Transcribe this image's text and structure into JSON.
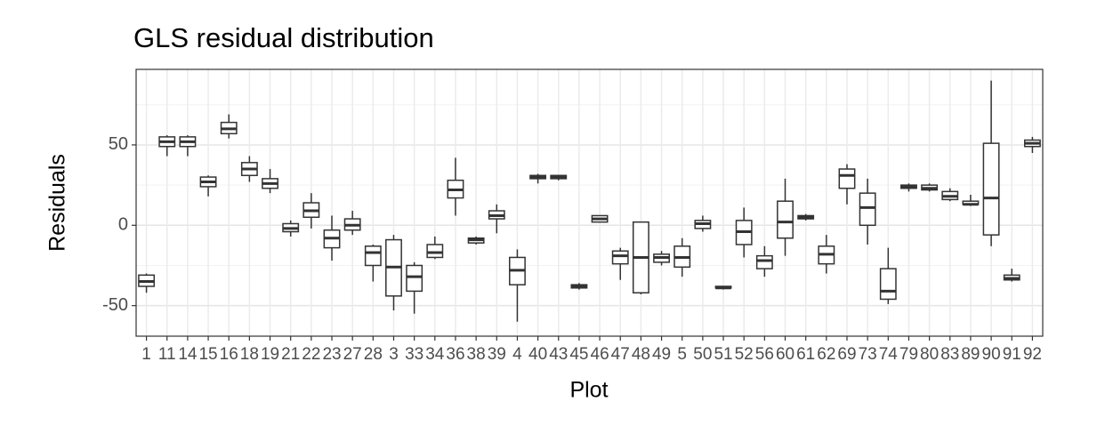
{
  "chart_data": {
    "type": "boxplot",
    "title": "GLS residual distribution",
    "x_label": "Plot",
    "y_label": "Residuals",
    "categories": [
      "1",
      "11",
      "14",
      "15",
      "16",
      "18",
      "19",
      "21",
      "22",
      "23",
      "27",
      "28",
      "3",
      "33",
      "34",
      "36",
      "38",
      "39",
      "4",
      "40",
      "43",
      "45",
      "46",
      "47",
      "48",
      "49",
      "5",
      "50",
      "51",
      "52",
      "56",
      "60",
      "61",
      "62",
      "69",
      "73",
      "74",
      "79",
      "80",
      "83",
      "89",
      "90",
      "91",
      "92"
    ],
    "min": [
      -42,
      43,
      43,
      18,
      54,
      27,
      20,
      -7,
      -2,
      -22,
      -6,
      -35,
      -53,
      -55,
      -21,
      6,
      -12,
      -5,
      -60,
      26,
      28,
      -40,
      2,
      -34,
      -43,
      -25,
      -32,
      -4,
      -40,
      -20,
      -32,
      -19,
      3,
      -30,
      13,
      -12,
      -49,
      21,
      21,
      15,
      12,
      -13,
      -35,
      45
    ],
    "q1": [
      -38,
      49,
      49,
      24,
      57,
      31,
      23,
      -4,
      5,
      -14,
      -3,
      -25,
      -44,
      -41,
      -20,
      17,
      -11,
      4,
      -37,
      29,
      29,
      -39,
      2,
      -24,
      -42,
      -23,
      -26,
      -2,
      -39,
      -12,
      -27,
      -8,
      4,
      -24,
      23,
      0,
      -46,
      23,
      22,
      16,
      13,
      -6,
      -34,
      49
    ],
    "median": [
      -35,
      52,
      52,
      27,
      60,
      35,
      26,
      -2,
      9,
      -8,
      0,
      -17,
      -26,
      -32,
      -17,
      22,
      -9,
      6,
      -28,
      30,
      30,
      -38,
      4,
      -19,
      -20,
      -20,
      -20,
      1,
      -39,
      -4,
      -22,
      2,
      5,
      -18,
      31,
      11,
      -41,
      24,
      23,
      18,
      13,
      17,
      -33,
      51
    ],
    "q3": [
      -31,
      55,
      55,
      30,
      64,
      39,
      29,
      1,
      14,
      -3,
      4,
      -13,
      -9,
      -25,
      -12,
      28,
      -8,
      9,
      -20,
      31,
      31,
      -37,
      6,
      -16,
      2,
      -18,
      -13,
      3,
      -38,
      3,
      -19,
      15,
      6,
      -13,
      35,
      20,
      -27,
      25,
      25,
      21,
      15,
      51,
      -31,
      53
    ],
    "max": [
      -30,
      56,
      56,
      31,
      69,
      43,
      35,
      3,
      20,
      6,
      9,
      -12,
      -6,
      -23,
      -7,
      42,
      -7,
      13,
      -15,
      32,
      31,
      -36,
      6,
      -14,
      2,
      -16,
      -8,
      6,
      -38,
      11,
      -13,
      29,
      7,
      -6,
      38,
      29,
      -14,
      26,
      26,
      23,
      19,
      90,
      -27,
      55
    ],
    "color": "#333333",
    "ylim": [
      -69,
      97
    ],
    "yticks": [
      -50,
      0,
      50
    ],
    "minor_yticks": [
      -25,
      25,
      75
    ],
    "grid": true
  }
}
